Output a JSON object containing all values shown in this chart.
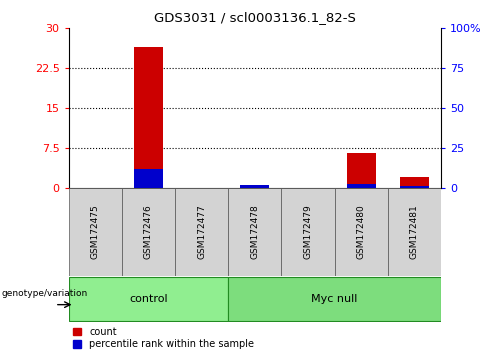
{
  "title": "GDS3031 / scl0003136.1_82-S",
  "samples": [
    "GSM172475",
    "GSM172476",
    "GSM172477",
    "GSM172478",
    "GSM172479",
    "GSM172480",
    "GSM172481"
  ],
  "count_values": [
    0,
    26.5,
    0,
    0.5,
    0,
    6.5,
    2.0
  ],
  "percentile_values": [
    0,
    11.5,
    0,
    1.5,
    0,
    2.5,
    1.0
  ],
  "groups": [
    {
      "label": "control",
      "start": 0,
      "end": 3,
      "color": "#90ee90"
    },
    {
      "label": "Myc null",
      "start": 3,
      "end": 7,
      "color": "#7ddd7d"
    }
  ],
  "ylim_left": [
    0,
    30
  ],
  "ylim_right": [
    0,
    100
  ],
  "yticks_left": [
    0,
    7.5,
    15,
    22.5,
    30
  ],
  "yticks_right": [
    0,
    25,
    50,
    75,
    100
  ],
  "ytick_labels_left": [
    "0",
    "7.5",
    "15",
    "22.5",
    "30"
  ],
  "ytick_labels_right": [
    "0",
    "25",
    "50",
    "75",
    "100%"
  ],
  "count_color": "#cc0000",
  "percentile_color": "#0000cc",
  "bar_width": 0.55,
  "genotype_label": "genotype/variation",
  "legend_count": "count",
  "legend_percentile": "percentile rank within the sample",
  "plot_bg": "white",
  "tick_area_bg": "#d3d3d3",
  "group_border_color": "#228B22"
}
